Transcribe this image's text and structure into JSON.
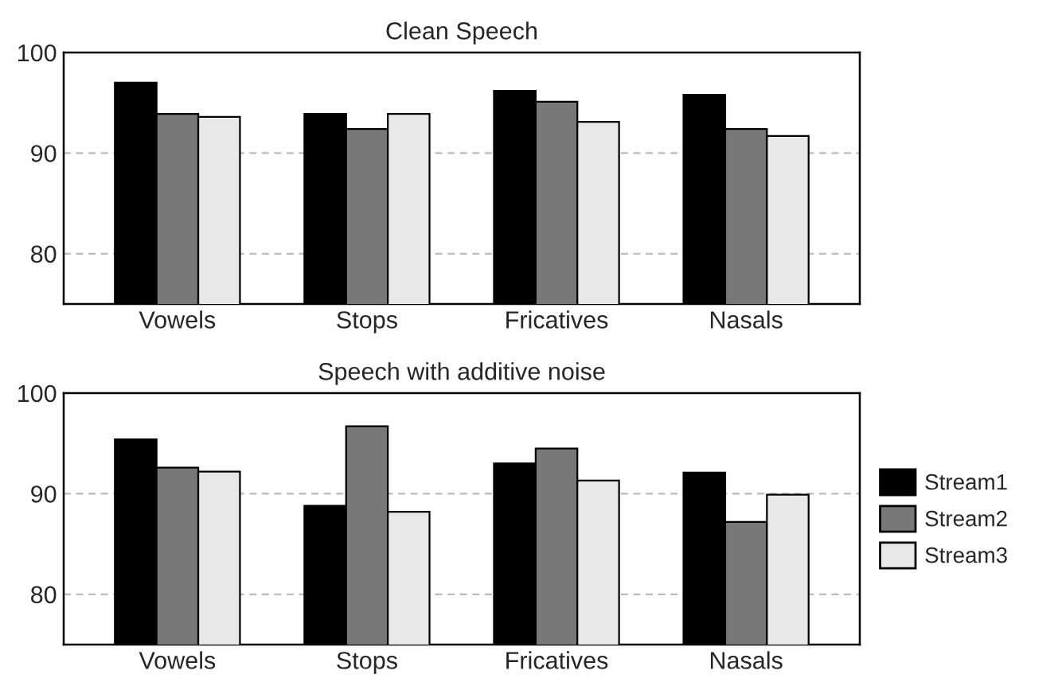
{
  "chart_data": [
    {
      "type": "bar",
      "title": "Clean Speech",
      "categories": [
        "Vowels",
        "Stops",
        "Fricatives",
        "Nasals"
      ],
      "series": [
        {
          "color": "#000000",
          "values": [
            97.0,
            93.9,
            96.2,
            95.8
          ]
        },
        {
          "color": "#787878",
          "values": [
            93.9,
            92.4,
            95.1,
            92.4
          ]
        },
        {
          "color": "#e8e8e8",
          "values": [
            93.6,
            93.9,
            93.1,
            91.7
          ]
        }
      ],
      "ylim": [
        75,
        100
      ],
      "yticks": [
        80,
        90,
        100
      ],
      "grid": "y"
    },
    {
      "type": "bar",
      "title": "Speech with additive noise",
      "categories": [
        "Vowels",
        "Stops",
        "Fricatives",
        "Nasals"
      ],
      "series": [
        {
          "name": "Stream1",
          "color": "#000000",
          "values": [
            95.4,
            88.8,
            93.0,
            92.1
          ]
        },
        {
          "name": "Stream2",
          "color": "#787878",
          "values": [
            92.6,
            96.7,
            94.5,
            87.2
          ]
        },
        {
          "name": "Stream3",
          "color": "#e8e8e8",
          "values": [
            92.2,
            88.2,
            91.3,
            89.9
          ]
        }
      ],
      "ylim": [
        75,
        100
      ],
      "yticks": [
        80,
        90,
        100
      ],
      "grid": "y",
      "legend": "right"
    }
  ]
}
